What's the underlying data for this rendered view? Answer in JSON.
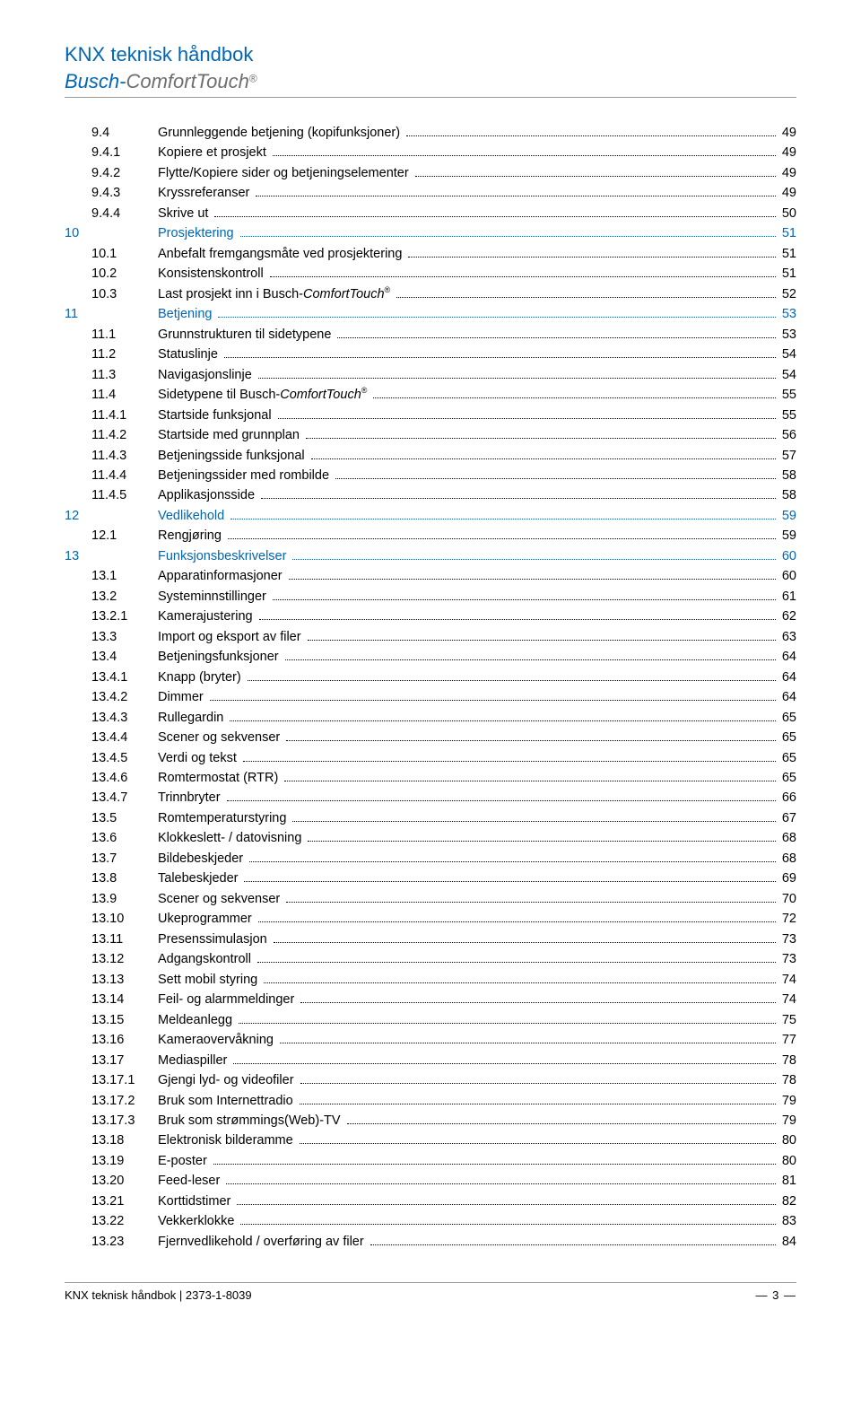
{
  "header": {
    "title": "KNX teknisk håndbok",
    "brand1": "Busch-",
    "brand2": "ComfortTouch",
    "reg": "®"
  },
  "footer": {
    "left": "KNX teknisk håndbok | 2373-1-8039",
    "page": "— 3 —"
  },
  "toc": [
    {
      "chapter": "",
      "num": "9.4",
      "text": "Grunnleggende betjening (kopifunksjoner)",
      "page": "49"
    },
    {
      "chapter": "",
      "num": "9.4.1",
      "text": "Kopiere et prosjekt",
      "page": "49"
    },
    {
      "chapter": "",
      "num": "9.4.2",
      "text": "Flytte/Kopiere sider og betjeningselementer",
      "page": "49"
    },
    {
      "chapter": "",
      "num": "9.4.3",
      "text": "Kryssreferanser",
      "page": "49"
    },
    {
      "chapter": "",
      "num": "9.4.4",
      "text": "Skrive ut",
      "page": "50"
    },
    {
      "chapter": "10",
      "num": "",
      "text": "Prosjektering",
      "page": "51",
      "blue": true
    },
    {
      "chapter": "",
      "num": "10.1",
      "text": "Anbefalt fremgangsmåte ved prosjektering",
      "page": "51"
    },
    {
      "chapter": "",
      "num": "10.2",
      "text": "Konsistenskontroll",
      "page": "51"
    },
    {
      "chapter": "",
      "num": "10.3",
      "text": "Last prosjekt inn i Busch-<i>ComfortTouch</i><sup>®</sup>",
      "page": "52",
      "html": true
    },
    {
      "chapter": "11",
      "num": "",
      "text": "Betjening",
      "page": "53",
      "blue": true
    },
    {
      "chapter": "",
      "num": "11.1",
      "text": "Grunnstrukturen til sidetypene",
      "page": "53"
    },
    {
      "chapter": "",
      "num": "11.2",
      "text": "Statuslinje",
      "page": "54"
    },
    {
      "chapter": "",
      "num": "11.3",
      "text": "Navigasjonslinje",
      "page": "54"
    },
    {
      "chapter": "",
      "num": "11.4",
      "text": "Sidetypene til Busch-<i>ComfortTouch</i><sup>®</sup>",
      "page": "55",
      "html": true
    },
    {
      "chapter": "",
      "num": "11.4.1",
      "text": "Startside funksjonal",
      "page": "55"
    },
    {
      "chapter": "",
      "num": "11.4.2",
      "text": "Startside med grunnplan",
      "page": "56"
    },
    {
      "chapter": "",
      "num": "11.4.3",
      "text": "Betjeningsside funksjonal",
      "page": "57"
    },
    {
      "chapter": "",
      "num": "11.4.4",
      "text": "Betjeningssider med rombilde",
      "page": "58"
    },
    {
      "chapter": "",
      "num": "11.4.5",
      "text": "Applikasjonsside",
      "page": "58"
    },
    {
      "chapter": "12",
      "num": "",
      "text": "Vedlikehold",
      "page": "59",
      "blue": true
    },
    {
      "chapter": "",
      "num": "12.1",
      "text": "Rengjøring",
      "page": "59"
    },
    {
      "chapter": "13",
      "num": "",
      "text": "Funksjonsbeskrivelser",
      "page": "60",
      "blue": true
    },
    {
      "chapter": "",
      "num": "13.1",
      "text": "Apparatinformasjoner",
      "page": "60"
    },
    {
      "chapter": "",
      "num": "13.2",
      "text": "Systeminnstillinger",
      "page": "61"
    },
    {
      "chapter": "",
      "num": "13.2.1",
      "text": "Kamerajustering",
      "page": "62"
    },
    {
      "chapter": "",
      "num": "13.3",
      "text": "Import og eksport av filer",
      "page": "63"
    },
    {
      "chapter": "",
      "num": "13.4",
      "text": "Betjeningsfunksjoner",
      "page": "64"
    },
    {
      "chapter": "",
      "num": "13.4.1",
      "text": "Knapp (bryter)",
      "page": "64"
    },
    {
      "chapter": "",
      "num": "13.4.2",
      "text": "Dimmer",
      "page": "64"
    },
    {
      "chapter": "",
      "num": "13.4.3",
      "text": "Rullegardin",
      "page": "65"
    },
    {
      "chapter": "",
      "num": "13.4.4",
      "text": "Scener og sekvenser",
      "page": "65"
    },
    {
      "chapter": "",
      "num": "13.4.5",
      "text": "Verdi og tekst",
      "page": "65"
    },
    {
      "chapter": "",
      "num": "13.4.6",
      "text": "Romtermostat (RTR)",
      "page": "65"
    },
    {
      "chapter": "",
      "num": "13.4.7",
      "text": "Trinnbryter",
      "page": "66"
    },
    {
      "chapter": "",
      "num": "13.5",
      "text": "Romtemperaturstyring",
      "page": "67"
    },
    {
      "chapter": "",
      "num": "13.6",
      "text": "Klokkeslett- / datovisning",
      "page": "68"
    },
    {
      "chapter": "",
      "num": "13.7",
      "text": "Bildebeskjeder",
      "page": "68"
    },
    {
      "chapter": "",
      "num": "13.8",
      "text": "Talebeskjeder",
      "page": "69"
    },
    {
      "chapter": "",
      "num": "13.9",
      "text": "Scener og sekvenser",
      "page": "70"
    },
    {
      "chapter": "",
      "num": "13.10",
      "text": "Ukeprogrammer",
      "page": "72"
    },
    {
      "chapter": "",
      "num": "13.11",
      "text": "Presenssimulasjon",
      "page": "73"
    },
    {
      "chapter": "",
      "num": "13.12",
      "text": "Adgangskontroll",
      "page": "73"
    },
    {
      "chapter": "",
      "num": "13.13",
      "text": "Sett mobil styring",
      "page": "74"
    },
    {
      "chapter": "",
      "num": "13.14",
      "text": "Feil- og alarmmeldinger",
      "page": "74"
    },
    {
      "chapter": "",
      "num": "13.15",
      "text": "Meldeanlegg",
      "page": "75"
    },
    {
      "chapter": "",
      "num": "13.16",
      "text": "Kameraovervåkning",
      "page": "77"
    },
    {
      "chapter": "",
      "num": "13.17",
      "text": "Mediaspiller",
      "page": "78"
    },
    {
      "chapter": "",
      "num": "13.17.1",
      "text": "Gjengi lyd- og videofiler",
      "page": "78"
    },
    {
      "chapter": "",
      "num": "13.17.2",
      "text": "Bruk som Internettradio",
      "page": "79"
    },
    {
      "chapter": "",
      "num": "13.17.3",
      "text": "Bruk som strømmings(Web)-TV",
      "page": "79"
    },
    {
      "chapter": "",
      "num": "13.18",
      "text": "Elektronisk bilderamme",
      "page": "80"
    },
    {
      "chapter": "",
      "num": "13.19",
      "text": "E-poster",
      "page": "80"
    },
    {
      "chapter": "",
      "num": "13.20",
      "text": "Feed-leser",
      "page": "81"
    },
    {
      "chapter": "",
      "num": "13.21",
      "text": "Korttidstimer",
      "page": "82"
    },
    {
      "chapter": "",
      "num": "13.22",
      "text": "Vekkerklokke",
      "page": "83"
    },
    {
      "chapter": "",
      "num": "13.23",
      "text": "Fjernvedlikehold / overføring av filer",
      "page": "84"
    }
  ]
}
